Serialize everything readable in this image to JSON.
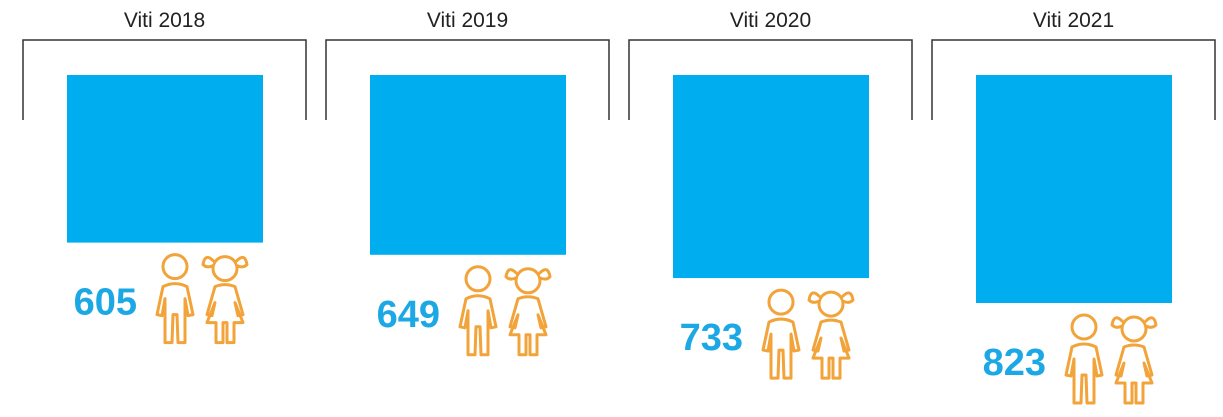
{
  "chart_data": {
    "type": "bar",
    "categories": [
      "Viti 2018",
      "Viti 2019",
      "Viti 2020",
      "Viti 2021"
    ],
    "values": [
      605,
      649,
      733,
      823
    ],
    "color": "#00adee"
  }
}
